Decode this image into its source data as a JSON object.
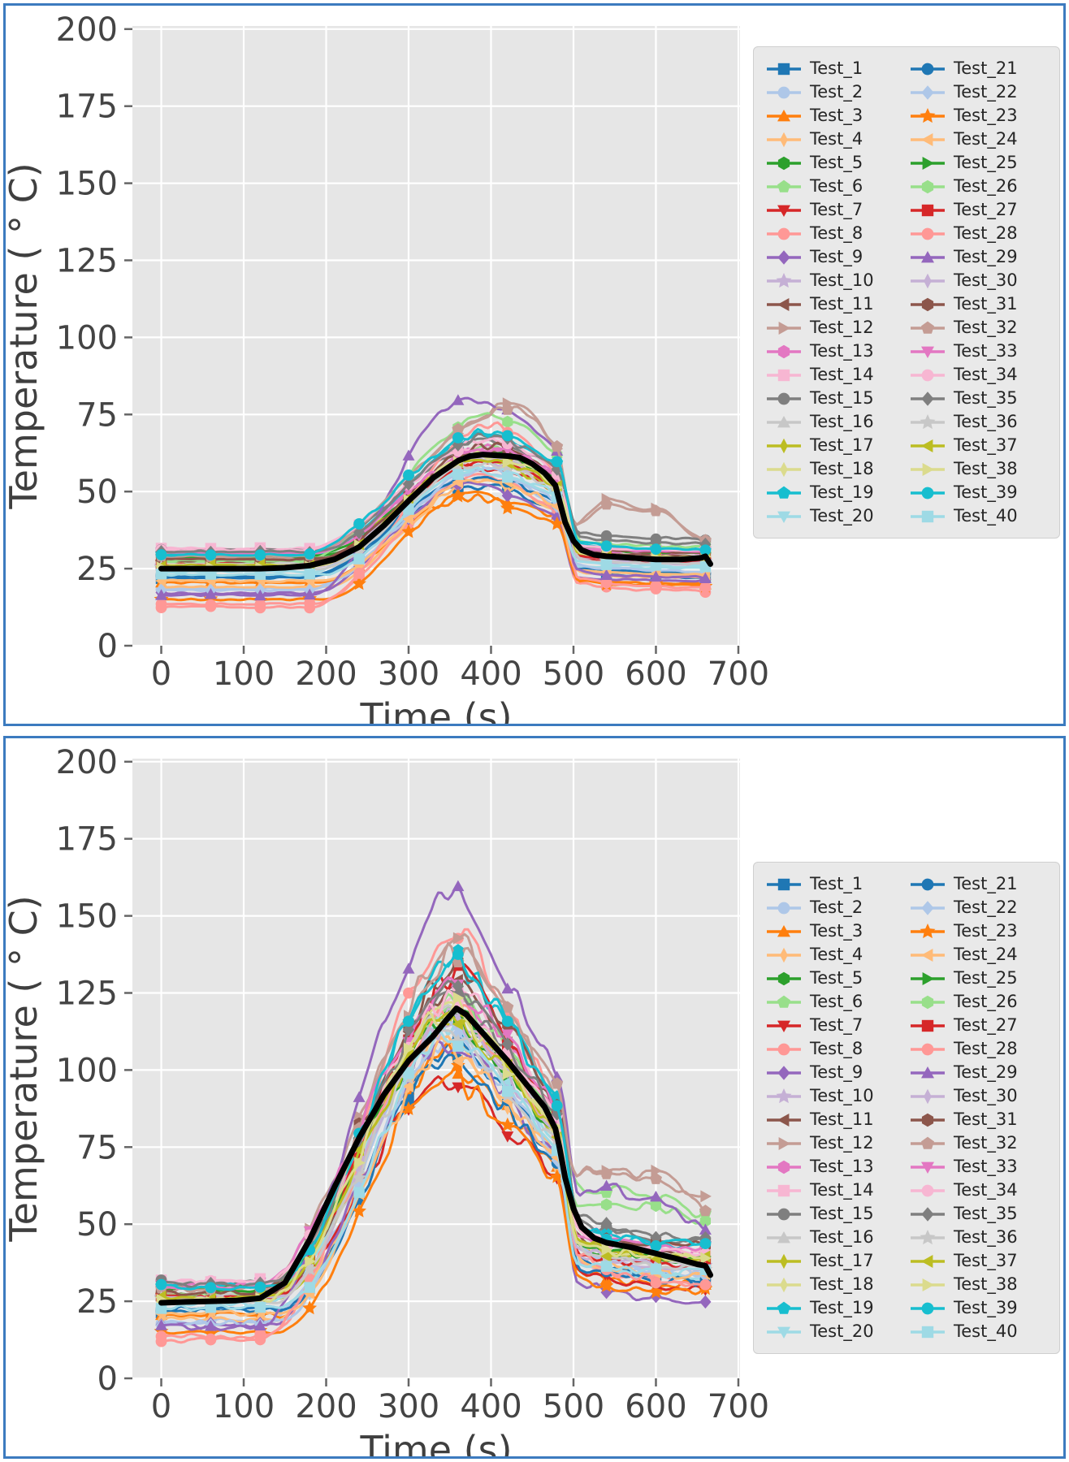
{
  "figure": {
    "panel_border_color": "#3c7bbf",
    "plot_bg": "#e6e6e6",
    "grid_color": "#ffffff",
    "tick_color": "#666666",
    "tick_label_color": "#444444",
    "axis_label_color": "#3f3f3f",
    "legend_bg": "#e9e9e9",
    "legend_border": "#cfcfcf",
    "mean_line_color": "#000000"
  },
  "chart_data": {
    "type": "line",
    "shared": {
      "xlabel": "Time (s)",
      "ylabel": "Temperature ( ° C)",
      "xlim": [
        -35,
        702
      ],
      "ylim": [
        0,
        201
      ],
      "xticks": [
        0,
        100,
        200,
        300,
        400,
        500,
        600,
        700
      ],
      "yticks": [
        0,
        25,
        50,
        75,
        100,
        125,
        150,
        175,
        200
      ],
      "marker_interval_s": 60,
      "t_end": 660,
      "legend_columns": 2,
      "series": [
        {
          "label": "Test_1",
          "color": "#1f77b4",
          "marker": "square"
        },
        {
          "label": "Test_2",
          "color": "#aec7e8",
          "marker": "circle"
        },
        {
          "label": "Test_3",
          "color": "#ff7f0e",
          "marker": "triangle_up"
        },
        {
          "label": "Test_4",
          "color": "#ffbb78",
          "marker": "thin_diamond"
        },
        {
          "label": "Test_5",
          "color": "#2ca02c",
          "marker": "hexagon"
        },
        {
          "label": "Test_6",
          "color": "#98df8a",
          "marker": "pentagon"
        },
        {
          "label": "Test_7",
          "color": "#d62728",
          "marker": "triangle_down"
        },
        {
          "label": "Test_8",
          "color": "#ff9896",
          "marker": "circle"
        },
        {
          "label": "Test_9",
          "color": "#9467bd",
          "marker": "diamond"
        },
        {
          "label": "Test_10",
          "color": "#c5b0d5",
          "marker": "star"
        },
        {
          "label": "Test_11",
          "color": "#8c564b",
          "marker": "triangle_left"
        },
        {
          "label": "Test_12",
          "color": "#c49c94",
          "marker": "triangle_right"
        },
        {
          "label": "Test_13",
          "color": "#e377c2",
          "marker": "hexagon"
        },
        {
          "label": "Test_14",
          "color": "#f7b6d2",
          "marker": "square"
        },
        {
          "label": "Test_15",
          "color": "#7f7f7f",
          "marker": "circle"
        },
        {
          "label": "Test_16",
          "color": "#c7c7c7",
          "marker": "triangle_up"
        },
        {
          "label": "Test_17",
          "color": "#bcbd22",
          "marker": "thin_diamond"
        },
        {
          "label": "Test_18",
          "color": "#dbdb8d",
          "marker": "thin_diamond"
        },
        {
          "label": "Test_19",
          "color": "#17becf",
          "marker": "pentagon"
        },
        {
          "label": "Test_20",
          "color": "#9edae5",
          "marker": "triangle_down"
        },
        {
          "label": "Test_21",
          "color": "#1f77b4",
          "marker": "circle"
        },
        {
          "label": "Test_22",
          "color": "#aec7e8",
          "marker": "diamond"
        },
        {
          "label": "Test_23",
          "color": "#ff7f0e",
          "marker": "star"
        },
        {
          "label": "Test_24",
          "color": "#ffbb78",
          "marker": "triangle_left"
        },
        {
          "label": "Test_25",
          "color": "#2ca02c",
          "marker": "triangle_right"
        },
        {
          "label": "Test_26",
          "color": "#98df8a",
          "marker": "hexagon"
        },
        {
          "label": "Test_27",
          "color": "#d62728",
          "marker": "square"
        },
        {
          "label": "Test_28",
          "color": "#ff9896",
          "marker": "circle"
        },
        {
          "label": "Test_29",
          "color": "#9467bd",
          "marker": "triangle_up"
        },
        {
          "label": "Test_30",
          "color": "#c5b0d5",
          "marker": "thin_diamond"
        },
        {
          "label": "Test_31",
          "color": "#8c564b",
          "marker": "hexagon"
        },
        {
          "label": "Test_32",
          "color": "#c49c94",
          "marker": "pentagon"
        },
        {
          "label": "Test_33",
          "color": "#e377c2",
          "marker": "triangle_down"
        },
        {
          "label": "Test_34",
          "color": "#f7b6d2",
          "marker": "circle"
        },
        {
          "label": "Test_35",
          "color": "#7f7f7f",
          "marker": "diamond"
        },
        {
          "label": "Test_36",
          "color": "#c7c7c7",
          "marker": "star"
        },
        {
          "label": "Test_37",
          "color": "#bcbd22",
          "marker": "triangle_left"
        },
        {
          "label": "Test_38",
          "color": "#dbdb8d",
          "marker": "triangle_right"
        },
        {
          "label": "Test_39",
          "color": "#17becf",
          "marker": "circle"
        },
        {
          "label": "Test_40",
          "color": "#9edae5",
          "marker": "square"
        }
      ],
      "baseline_t0_C": [
        22,
        18.5,
        20.5,
        19,
        29.5,
        27,
        26.5,
        12.5,
        17,
        26,
        27.5,
        28.5,
        30.5,
        31.5,
        31,
        26.5,
        25.5,
        26,
        30,
        24,
        22.5,
        18,
        15,
        21,
        29,
        27.5,
        26,
        13.5,
        16.5,
        25.5,
        28,
        29,
        30,
        31,
        30.5,
        25,
        26,
        25.5,
        29.5,
        23
      ]
    },
    "charts": [
      {
        "name": "upper",
        "peak_C": [
          52,
          56,
          49,
          53,
          62,
          64,
          58,
          55,
          52,
          60,
          63,
          78,
          64,
          66,
          66,
          62,
          60,
          62,
          68,
          58,
          55,
          57,
          48,
          54,
          63,
          75,
          60,
          72,
          80,
          61,
          65,
          77,
          64,
          67,
          68,
          59,
          61,
          62,
          69,
          57
        ],
        "end_C": [
          22,
          23,
          20,
          22,
          30,
          30,
          27,
          17.5,
          21,
          27,
          29,
          33,
          30,
          31,
          34.5,
          28,
          28,
          28.5,
          31,
          25,
          23.5,
          24,
          19.5,
          23,
          30,
          32,
          27.5,
          18.5,
          22,
          26.5,
          30,
          34,
          30.5,
          31,
          33,
          26.5,
          28,
          28.5,
          31,
          25.5
        ],
        "peak_t_s": [
          380,
          390,
          375,
          385,
          395,
          400,
          380,
          385,
          370,
          390,
          400,
          428,
          395,
          400,
          390,
          385,
          380,
          388,
          392,
          378,
          382,
          390,
          372,
          384,
          396,
          402,
          392,
          398,
          368,
          386,
          398,
          425,
          394,
          399,
          396,
          383,
          387,
          390,
          393,
          380
        ],
        "tail_bump_C": {
          "12": 13,
          "32": 11
        },
        "shape": {
          "rise_start": 180,
          "drop_t": 478,
          "drop_end_t": 506,
          "pre_drop_frac": 0.74,
          "decline_pow": 1.7,
          "post_drop_extra": 0.05,
          "rise_ref": 62,
          "rise_scale": 0.5
        },
        "noise_amp_C": 1.0,
        "mean_curve": [
          [
            0,
            25
          ],
          [
            30,
            25
          ],
          [
            60,
            25
          ],
          [
            90,
            25
          ],
          [
            120,
            25
          ],
          [
            150,
            25.3
          ],
          [
            180,
            26
          ],
          [
            210,
            28
          ],
          [
            240,
            32
          ],
          [
            270,
            39
          ],
          [
            300,
            47
          ],
          [
            330,
            54.5
          ],
          [
            360,
            60
          ],
          [
            375,
            61.5
          ],
          [
            390,
            62
          ],
          [
            420,
            61.5
          ],
          [
            435,
            61
          ],
          [
            450,
            59
          ],
          [
            465,
            56
          ],
          [
            478,
            52
          ],
          [
            482,
            48
          ],
          [
            490,
            40
          ],
          [
            500,
            34
          ],
          [
            510,
            31
          ],
          [
            525,
            29.5
          ],
          [
            540,
            29
          ],
          [
            570,
            28.5
          ],
          [
            600,
            28
          ],
          [
            630,
            28
          ],
          [
            655,
            28.5
          ],
          [
            660,
            29
          ],
          [
            666,
            26.5
          ]
        ]
      },
      {
        "name": "lower",
        "peak_C": [
          108,
          112,
          105,
          110,
          118,
          122,
          97,
          146,
          110,
          118,
          128,
          140,
          126,
          127,
          125,
          120,
          119,
          121,
          135,
          115,
          104,
          113,
          100,
          108,
          117,
          124,
          131,
          122,
          158,
          116,
          133,
          139,
          128,
          123,
          127,
          114,
          118,
          120,
          136,
          112
        ],
        "end_C": [
          32,
          33,
          30,
          34,
          38,
          52,
          29,
          31,
          24,
          36,
          40,
          58,
          40,
          41,
          44,
          37,
          38,
          39,
          42,
          33,
          31,
          34,
          28,
          33,
          39,
          50,
          36,
          30,
          48,
          35,
          43,
          55,
          42,
          40,
          45,
          35,
          38,
          39,
          43,
          34
        ],
        "peak_t_s": [
          355,
          360,
          350,
          356,
          362,
          365,
          348,
          362,
          352,
          358,
          364,
          368,
          360,
          362,
          358,
          356,
          354,
          359,
          361,
          353,
          352,
          357,
          349,
          355,
          360,
          363,
          366,
          361,
          360,
          356,
          365,
          367,
          362,
          359,
          361,
          354,
          357,
          358,
          362,
          355
        ],
        "tail_bump_C": {
          "6": 6,
          "12": 8,
          "26": 6,
          "29": 10,
          "32": 9
        },
        "shape": {
          "rise_start": 128,
          "drop_t": 478,
          "drop_end_t": 506,
          "pre_drop_frac": 0.58,
          "decline_pow": 1.1,
          "post_drop_extra": 0.07,
          "rise_ref": 120,
          "rise_scale": 0.45
        },
        "noise_amp_C": 3.2,
        "mean_curve": [
          [
            0,
            24.5
          ],
          [
            30,
            24.8
          ],
          [
            60,
            25
          ],
          [
            90,
            25.2
          ],
          [
            120,
            26
          ],
          [
            150,
            31
          ],
          [
            180,
            45
          ],
          [
            210,
            62
          ],
          [
            240,
            78
          ],
          [
            270,
            92
          ],
          [
            300,
            103
          ],
          [
            330,
            111
          ],
          [
            345,
            116
          ],
          [
            358,
            120
          ],
          [
            370,
            118
          ],
          [
            390,
            112
          ],
          [
            420,
            103
          ],
          [
            450,
            93
          ],
          [
            465,
            88
          ],
          [
            478,
            81
          ],
          [
            483,
            75
          ],
          [
            490,
            65
          ],
          [
            500,
            55
          ],
          [
            510,
            49
          ],
          [
            525,
            45.5
          ],
          [
            540,
            44
          ],
          [
            570,
            42.5
          ],
          [
            600,
            40.5
          ],
          [
            630,
            38.5
          ],
          [
            650,
            37
          ],
          [
            660,
            36.5
          ],
          [
            666,
            33.5
          ]
        ]
      }
    ]
  }
}
